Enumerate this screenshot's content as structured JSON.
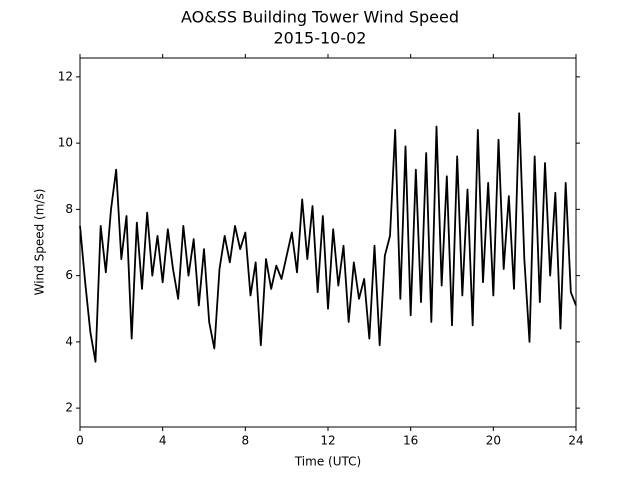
{
  "chart_data": {
    "type": "line",
    "title": "AO&SS Building Tower Wind Speed",
    "subtitle": "2015-10-02",
    "x_label": "Time (UTC)",
    "y_label": "Wind Speed (m/s)",
    "xlim": [
      0,
      24
    ],
    "xticks": [
      0,
      4,
      8,
      12,
      16,
      20,
      24
    ],
    "ylim": [
      1.43,
      12.57
    ],
    "yticks": [
      2,
      4,
      6,
      8,
      10,
      12
    ],
    "grid": false,
    "series": [
      {
        "name": "Wind Speed",
        "color": "#000000",
        "x": [
          0,
          0.25,
          0.5,
          0.75,
          1,
          1.25,
          1.5,
          1.75,
          2,
          2.25,
          2.5,
          2.75,
          3,
          3.25,
          3.5,
          3.75,
          4,
          4.25,
          4.5,
          4.75,
          5,
          5.25,
          5.5,
          5.75,
          6,
          6.25,
          6.5,
          6.75,
          7,
          7.25,
          7.5,
          7.75,
          8,
          8.25,
          8.5,
          8.75,
          9,
          9.25,
          9.5,
          9.75,
          10,
          10.25,
          10.5,
          10.75,
          11,
          11.25,
          11.5,
          11.75,
          12,
          12.25,
          12.5,
          12.75,
          13,
          13.25,
          13.5,
          13.75,
          14,
          14.25,
          14.5,
          14.75,
          15,
          15.25,
          15.5,
          15.75,
          16,
          16.25,
          16.5,
          16.75,
          17,
          17.25,
          17.5,
          17.75,
          18,
          18.25,
          18.5,
          18.75,
          19,
          19.25,
          19.5,
          19.75,
          20,
          20.25,
          20.5,
          20.75,
          21,
          21.25,
          21.5,
          21.75,
          22,
          22.25,
          22.5,
          22.75,
          23,
          23.25,
          23.5,
          23.75,
          24
        ],
        "values": [
          7.5,
          5.8,
          4.3,
          3.4,
          7.5,
          6.1,
          8.0,
          9.2,
          6.5,
          7.8,
          4.1,
          7.6,
          5.6,
          7.9,
          6.0,
          7.2,
          5.8,
          7.4,
          6.2,
          5.3,
          7.5,
          6.0,
          7.1,
          5.1,
          6.8,
          4.6,
          3.8,
          6.2,
          7.2,
          6.4,
          7.5,
          6.8,
          7.3,
          5.4,
          6.4,
          3.9,
          6.5,
          5.6,
          6.3,
          5.9,
          6.6,
          7.3,
          6.1,
          8.3,
          6.5,
          8.1,
          5.5,
          7.8,
          5.0,
          7.4,
          5.7,
          6.9,
          4.6,
          6.4,
          5.3,
          5.9,
          4.1,
          6.9,
          3.9,
          6.6,
          7.2,
          10.4,
          5.3,
          9.9,
          4.8,
          9.2,
          5.2,
          9.7,
          4.6,
          10.5,
          5.7,
          9.0,
          4.5,
          9.6,
          5.4,
          8.6,
          4.5,
          10.4,
          5.8,
          8.8,
          5.4,
          10.1,
          6.2,
          8.4,
          5.6,
          10.9,
          6.5,
          4.0,
          9.6,
          5.2,
          9.4,
          6.0,
          8.5,
          4.4,
          8.8,
          5.5,
          5.1
        ]
      }
    ]
  }
}
